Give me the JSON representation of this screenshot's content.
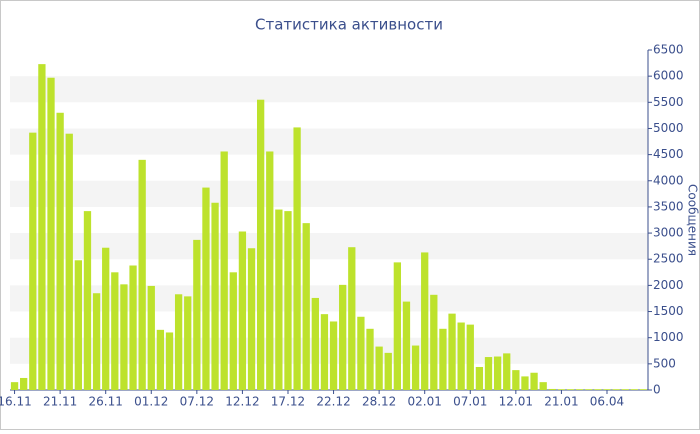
{
  "chart_data": {
    "type": "bar",
    "title": "Статистика активности",
    "y_label": "Сообщения",
    "categories": [
      "16.11",
      null,
      null,
      null,
      null,
      "21.11",
      null,
      null,
      null,
      null,
      "26.11",
      null,
      null,
      null,
      null,
      "01.12",
      null,
      null,
      null,
      null,
      "07.12",
      null,
      null,
      null,
      null,
      "12.12",
      null,
      null,
      null,
      null,
      "17.12",
      null,
      null,
      null,
      null,
      "22.12",
      null,
      null,
      null,
      null,
      "28.12",
      null,
      null,
      null,
      null,
      "02.01",
      null,
      null,
      null,
      null,
      "07.01",
      null,
      null,
      null,
      null,
      "12.01",
      null,
      null,
      null,
      null,
      "21.01",
      null,
      null,
      null,
      null,
      "06.04",
      null,
      null,
      null,
      null
    ],
    "values": [
      150,
      230,
      4920,
      6230,
      5970,
      5300,
      4900,
      2480,
      3420,
      1850,
      2720,
      2250,
      2020,
      2380,
      4400,
      1990,
      1150,
      1100,
      1830,
      1790,
      2870,
      3870,
      3580,
      4560,
      2250,
      3030,
      2710,
      5550,
      4560,
      3450,
      3420,
      5020,
      3190,
      1760,
      1450,
      1310,
      2010,
      2730,
      1400,
      1170,
      830,
      710,
      2440,
      1690,
      850,
      2630,
      1820,
      1170,
      1460,
      1290,
      1250,
      440,
      630,
      640,
      700,
      380,
      260,
      330,
      150,
      20,
      15,
      15,
      15,
      15,
      15,
      15,
      15,
      15,
      15,
      15
    ],
    "color": "#bde22c",
    "ylim": [
      0,
      6500
    ],
    "yticks": [
      0,
      500,
      1000,
      1500,
      2000,
      2500,
      3000,
      3500,
      4000,
      4500,
      5000,
      5500,
      6000,
      6500
    ],
    "stripes": true
  }
}
